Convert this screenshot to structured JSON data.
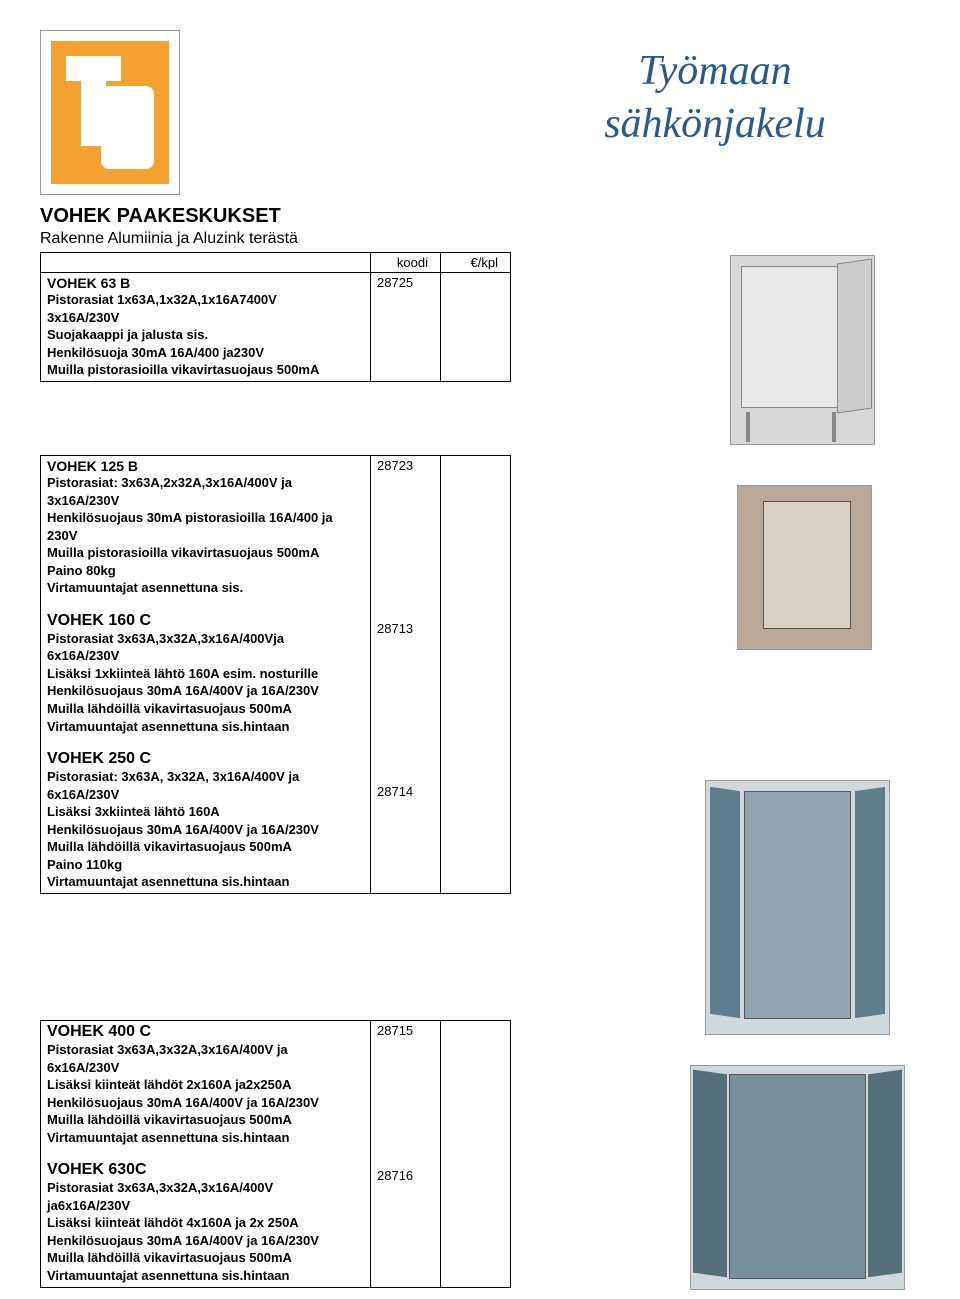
{
  "main_title_line1": "Työmaan",
  "main_title_line2": "sähkönjakelu",
  "section_title": "VOHEK PAAKESKUKSET",
  "section_subtitle": "Rakenne Alumiinia ja Aluzink terästä",
  "headers": {
    "code": "koodi",
    "price": "€/kpl"
  },
  "products": [
    {
      "name": "VOHEK 63 B",
      "code": "28725",
      "lines": [
        " Pistorasiat 1x63A,1x32A,1x16A7400V",
        "3x16A/230V",
        " Suojakaappi ja jalusta sis.",
        " Henkilösuoja 30mA 16A/400 ja230V",
        "Muilla pistorasioilla vikavirtasuojaus 500mA"
      ]
    },
    {
      "name": "VOHEK  125 B",
      "code": "28723",
      "lines": [
        "Pistorasiat: 3x63A,2x32A,3x16A/400V ja",
        "3x16A/230V",
        "Henkilösuojaus 30mA pistorasioilla 16A/400 ja 230V",
        "Muilla pistorasioilla vikavirtasuojaus 500mA",
        "Paino 80kg",
        "Virtamuuntajat asennettuna sis."
      ]
    },
    {
      "name": "VOHEK 160 C",
      "code": "28713",
      "lines": [
        "Pistorasiat 3x63A,3x32A,3x16A/400Vja",
        "6x16A/230V",
        "Lisäksi 1xkiinteä lähtö 160A esim. nosturille",
        "Henkilösuojaus 30mA  16A/400V ja 16A/230V",
        "Muilla lähdöillä vikavirtasuojaus 500mA",
        "Virtamuuntajat asennettuna sis.hintaan"
      ]
    },
    {
      "name": "VOHEK  250 C",
      "code": "28714",
      "lines": [
        "Pistorasiat:  3x63A, 3x32A, 3x16A/400V ja",
        "6x16A/230V",
        "Lisäksi 3xkiinteä lähtö 160A",
        "Henkilösuojaus 30mA  16A/400V ja 16A/230V",
        "Muilla lähdöillä vikavirtasuojaus 500mA",
        "Paino 110kg",
        "Virtamuuntajat asennettuna sis.hintaan"
      ]
    },
    {
      "name": "VOHEK 400 C",
      "code": "28715",
      "lines": [
        "Pistorasiat  3x63A,3x32A,3x16A/400V ja",
        "6x16A/230V",
        "Lisäksi kiinteät lähdöt 2x160A ja2x250A",
        "Henkilösuojaus 30mA 16A/400V ja 16A/230V",
        "Muilla lähdöillä vikavirtasuojaus 500mA",
        "Virtamuuntajat asennettuna sis.hintaan"
      ]
    },
    {
      "name": "VOHEK 630C",
      "code": "28716",
      "lines": [
        "Pistorasiat  3x63A,3x32A,3x16A/400V",
        "ja6x16A/230V",
        "Lisäksi kiinteät lähdöt 4x160A ja 2x 250A",
        "Henkilösuojaus 30mA  16A/400V ja 16A/230V",
        "Muilla lähdöillä vikavirtasuojaus 500mA",
        "Virtamuuntajat asennettuna sis.hintaan"
      ]
    }
  ]
}
